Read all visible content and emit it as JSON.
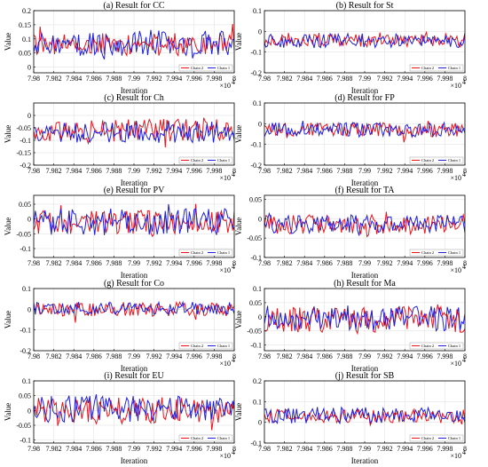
{
  "colors": {
    "chain2": "#e8141b",
    "chain1": "#1f1fdd",
    "grid": "#dcdcdc",
    "axis": "#000000"
  },
  "chart_data": [
    {
      "type": "line",
      "title": "(a)  Result for CC",
      "xlabel": "Iteration",
      "ylabel": "Value",
      "xlim": [
        79800,
        80000
      ],
      "ylim": [
        -0.02,
        0.2
      ],
      "yticks": [
        "0",
        "0.05",
        "0.1",
        "0.15",
        "0.2"
      ],
      "yticks_values": [
        0,
        0.05,
        0.1,
        0.15,
        0.2
      ],
      "xticks": [
        "7.98",
        "7.982",
        "7.984",
        "7.986",
        "7.988",
        "7.99",
        "7.992",
        "7.994",
        "7.996",
        "7.998",
        "8"
      ],
      "x_multiplier": "×10",
      "x_exponent": "4",
      "grid": true,
      "legend": "bottom-right",
      "series": [
        {
          "name": "Chain 2",
          "mean": 0.08,
          "amp": 0.04,
          "seed": 11
        },
        {
          "name": "Chain 1",
          "mean": 0.085,
          "amp": 0.045,
          "seed": 12
        }
      ]
    },
    {
      "type": "line",
      "title": "(b)  Result for St",
      "xlabel": "Iteration",
      "ylabel": "Value",
      "xlim": [
        79800,
        80000
      ],
      "ylim": [
        -0.2,
        0.1
      ],
      "yticks": [
        "-0.2",
        "-0.1",
        "0",
        "0.1"
      ],
      "yticks_values": [
        -0.2,
        -0.1,
        0,
        0.1
      ],
      "xticks": [
        "7.98",
        "7.982",
        "7.984",
        "7.986",
        "7.988",
        "7.99",
        "7.992",
        "7.994",
        "7.996",
        "7.998",
        "8"
      ],
      "x_multiplier": "×10",
      "x_exponent": "4",
      "grid": true,
      "legend": "bottom-right",
      "series": [
        {
          "name": "Chain 2",
          "mean": -0.04,
          "amp": 0.035,
          "seed": 21
        },
        {
          "name": "Chain 1",
          "mean": -0.045,
          "amp": 0.035,
          "seed": 22
        }
      ]
    },
    {
      "type": "line",
      "title": "(c)  Result for Ch",
      "xlabel": "Iteration",
      "ylabel": "Value",
      "xlim": [
        79800,
        80000
      ],
      "ylim": [
        -0.2,
        0.05
      ],
      "yticks": [
        "-0.2",
        "-0.15",
        "-0.1",
        "-0.05",
        "0"
      ],
      "yticks_values": [
        -0.2,
        -0.15,
        -0.1,
        -0.05,
        0
      ],
      "xticks": [
        "7.98",
        "7.982",
        "7.984",
        "7.986",
        "7.988",
        "7.99",
        "7.992",
        "7.994",
        "7.996",
        "7.998",
        "8"
      ],
      "x_multiplier": "×10",
      "x_exponent": "4",
      "grid": true,
      "legend": "bottom-right",
      "series": [
        {
          "name": "Chain 2",
          "mean": -0.06,
          "amp": 0.045,
          "seed": 31
        },
        {
          "name": "Chain 1",
          "mean": -0.065,
          "amp": 0.045,
          "seed": 32
        }
      ]
    },
    {
      "type": "line",
      "title": "(d)  Result for FP",
      "xlabel": "Iteration",
      "ylabel": "Value",
      "xlim": [
        79800,
        80000
      ],
      "ylim": [
        -0.2,
        0.1
      ],
      "yticks": [
        "-0.2",
        "-0.1",
        "0",
        "0.1"
      ],
      "yticks_values": [
        -0.2,
        -0.1,
        0,
        0.1
      ],
      "xticks": [
        "7.98",
        "7.982",
        "7.984",
        "7.986",
        "7.988",
        "7.99",
        "7.992",
        "7.994",
        "7.996",
        "7.998",
        "8"
      ],
      "x_multiplier": "×10",
      "x_exponent": "4",
      "grid": true,
      "legend": "bottom-right",
      "series": [
        {
          "name": "Chain 2",
          "mean": -0.03,
          "amp": 0.035,
          "seed": 41
        },
        {
          "name": "Chain 1",
          "mean": -0.03,
          "amp": 0.035,
          "seed": 42
        }
      ]
    },
    {
      "type": "line",
      "title": "(e)  Result for PV",
      "xlabel": "Iteration",
      "ylabel": "Value",
      "xlim": [
        79800,
        80000
      ],
      "ylim": [
        -0.13,
        0.08
      ],
      "yticks": [
        "-0.1",
        "-0.05",
        "0",
        "0.05"
      ],
      "yticks_values": [
        -0.1,
        -0.05,
        0,
        0.05
      ],
      "xticks": [
        "7.98",
        "7.982",
        "7.984",
        "7.986",
        "7.988",
        "7.99",
        "7.992",
        "7.994",
        "7.996",
        "7.998",
        "8"
      ],
      "x_multiplier": "×10",
      "x_exponent": "4",
      "grid": true,
      "legend": "bottom-right",
      "series": [
        {
          "name": "Chain 2",
          "mean": -0.01,
          "amp": 0.04,
          "seed": 51
        },
        {
          "name": "Chain 1",
          "mean": -0.01,
          "amp": 0.045,
          "seed": 52
        }
      ]
    },
    {
      "type": "line",
      "title": "(f)  Result for TA",
      "xlabel": "Iteration",
      "ylabel": "Value",
      "xlim": [
        79800,
        80000
      ],
      "ylim": [
        -0.1,
        0.06
      ],
      "yticks": [
        "-0.1",
        "-0.05",
        "0",
        "0.05"
      ],
      "yticks_values": [
        -0.1,
        -0.05,
        0,
        0.05
      ],
      "xticks": [
        "7.98",
        "7.982",
        "7.984",
        "7.986",
        "7.988",
        "7.99",
        "7.992",
        "7.994",
        "7.996",
        "7.998",
        "8"
      ],
      "x_multiplier": "×10",
      "x_exponent": "4",
      "grid": true,
      "legend": "bottom-right",
      "series": [
        {
          "name": "Chain 2",
          "mean": -0.015,
          "amp": 0.025,
          "seed": 61
        },
        {
          "name": "Chain 1",
          "mean": -0.015,
          "amp": 0.025,
          "seed": 62
        }
      ]
    },
    {
      "type": "line",
      "title": "(g)  Result for Co",
      "xlabel": "Iteration",
      "ylabel": "Value",
      "xlim": [
        79800,
        80000
      ],
      "ylim": [
        -0.2,
        0.1
      ],
      "yticks": [
        "-0.2",
        "-0.1",
        "0",
        "0.1"
      ],
      "yticks_values": [
        -0.2,
        -0.1,
        0,
        0.1
      ],
      "xticks": [
        "7.98",
        "7.982",
        "7.984",
        "7.986",
        "7.988",
        "7.99",
        "7.992",
        "7.994",
        "7.996",
        "7.998",
        "8"
      ],
      "x_multiplier": "×10",
      "x_exponent": "4",
      "grid": true,
      "legend": "bottom-right",
      "series": [
        {
          "name": "Chain 2",
          "mean": 0.0,
          "amp": 0.035,
          "seed": 71
        },
        {
          "name": "Chain 1",
          "mean": 0.005,
          "amp": 0.03,
          "seed": 72
        }
      ]
    },
    {
      "type": "line",
      "title": "(h)  Result for Ma",
      "xlabel": "Iteration",
      "ylabel": "Value",
      "xlim": [
        79800,
        80000
      ],
      "ylim": [
        -0.12,
        0.1
      ],
      "yticks": [
        "-0.1",
        "-0.05",
        "0",
        "0.05",
        "0.1"
      ],
      "yticks_values": [
        -0.1,
        -0.05,
        0,
        0.05,
        0.1
      ],
      "xticks": [
        "7.98",
        "7.982",
        "7.984",
        "7.986",
        "7.988",
        "7.99",
        "7.992",
        "7.994",
        "7.996",
        "7.998",
        "8"
      ],
      "x_multiplier": "×10",
      "x_exponent": "4",
      "grid": true,
      "legend": "bottom-right",
      "series": [
        {
          "name": "Chain 2",
          "mean": -0.01,
          "amp": 0.045,
          "seed": 81
        },
        {
          "name": "Chain 1",
          "mean": -0.005,
          "amp": 0.045,
          "seed": 82
        }
      ]
    },
    {
      "type": "line",
      "title": "(i)  Result for EU",
      "xlabel": "Iteration",
      "ylabel": "Value",
      "xlim": [
        79800,
        80000
      ],
      "ylim": [
        -0.11,
        0.1
      ],
      "yticks": [
        "-0.1",
        "-0.05",
        "0",
        "0.05",
        "0.1"
      ],
      "yticks_values": [
        -0.1,
        -0.05,
        0,
        0.05,
        0.1
      ],
      "xticks": [
        "7.98",
        "7.982",
        "7.984",
        "7.986",
        "7.988",
        "7.99",
        "7.992",
        "7.994",
        "7.996",
        "7.998",
        "8"
      ],
      "x_multiplier": "×10",
      "x_exponent": "4",
      "grid": true,
      "legend": "bottom-right",
      "series": [
        {
          "name": "Chain 2",
          "mean": 0.0,
          "amp": 0.045,
          "seed": 91
        },
        {
          "name": "Chain 1",
          "mean": 0.005,
          "amp": 0.045,
          "seed": 92
        }
      ]
    },
    {
      "type": "line",
      "title": "(j)  Result for SB",
      "xlabel": "Iteration",
      "ylabel": "Value",
      "xlim": [
        79800,
        80000
      ],
      "ylim": [
        -0.1,
        0.2
      ],
      "yticks": [
        "-0.1",
        "0",
        "0.1",
        "0.2"
      ],
      "yticks_values": [
        -0.1,
        0,
        0.1,
        0.2
      ],
      "xticks": [
        "7.98",
        "7.982",
        "7.984",
        "7.986",
        "7.988",
        "7.99",
        "7.992",
        "7.994",
        "7.996",
        "7.998",
        "8"
      ],
      "x_multiplier": "×10",
      "x_exponent": "4",
      "grid": true,
      "legend": "bottom-right",
      "series": [
        {
          "name": "Chain 2",
          "mean": 0.03,
          "amp": 0.035,
          "seed": 101
        },
        {
          "name": "Chain 1",
          "mean": 0.035,
          "amp": 0.04,
          "seed": 102
        }
      ]
    }
  ]
}
